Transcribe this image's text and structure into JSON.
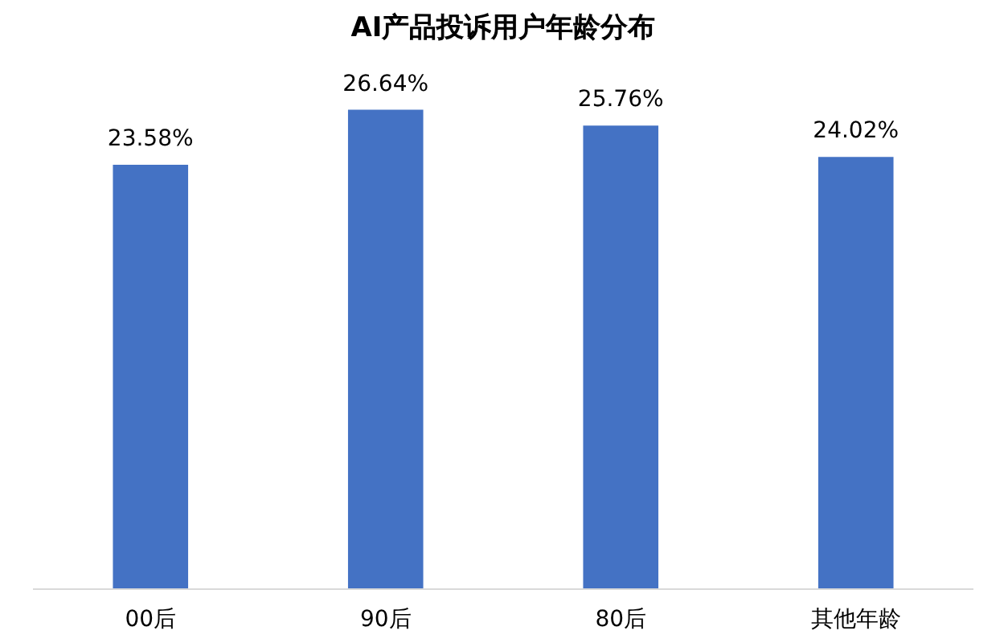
{
  "chart_data": {
    "type": "bar",
    "title": "AI产品投诉用户年龄分布",
    "categories": [
      "00后",
      "90后",
      "80后",
      "其他年龄"
    ],
    "values": [
      23.58,
      26.64,
      25.76,
      24.02
    ],
    "value_labels": [
      "23.58%",
      "26.64%",
      "25.76%",
      "24.02%"
    ],
    "color": "#4472c4",
    "tick_labels": "x",
    "grid": false
  }
}
